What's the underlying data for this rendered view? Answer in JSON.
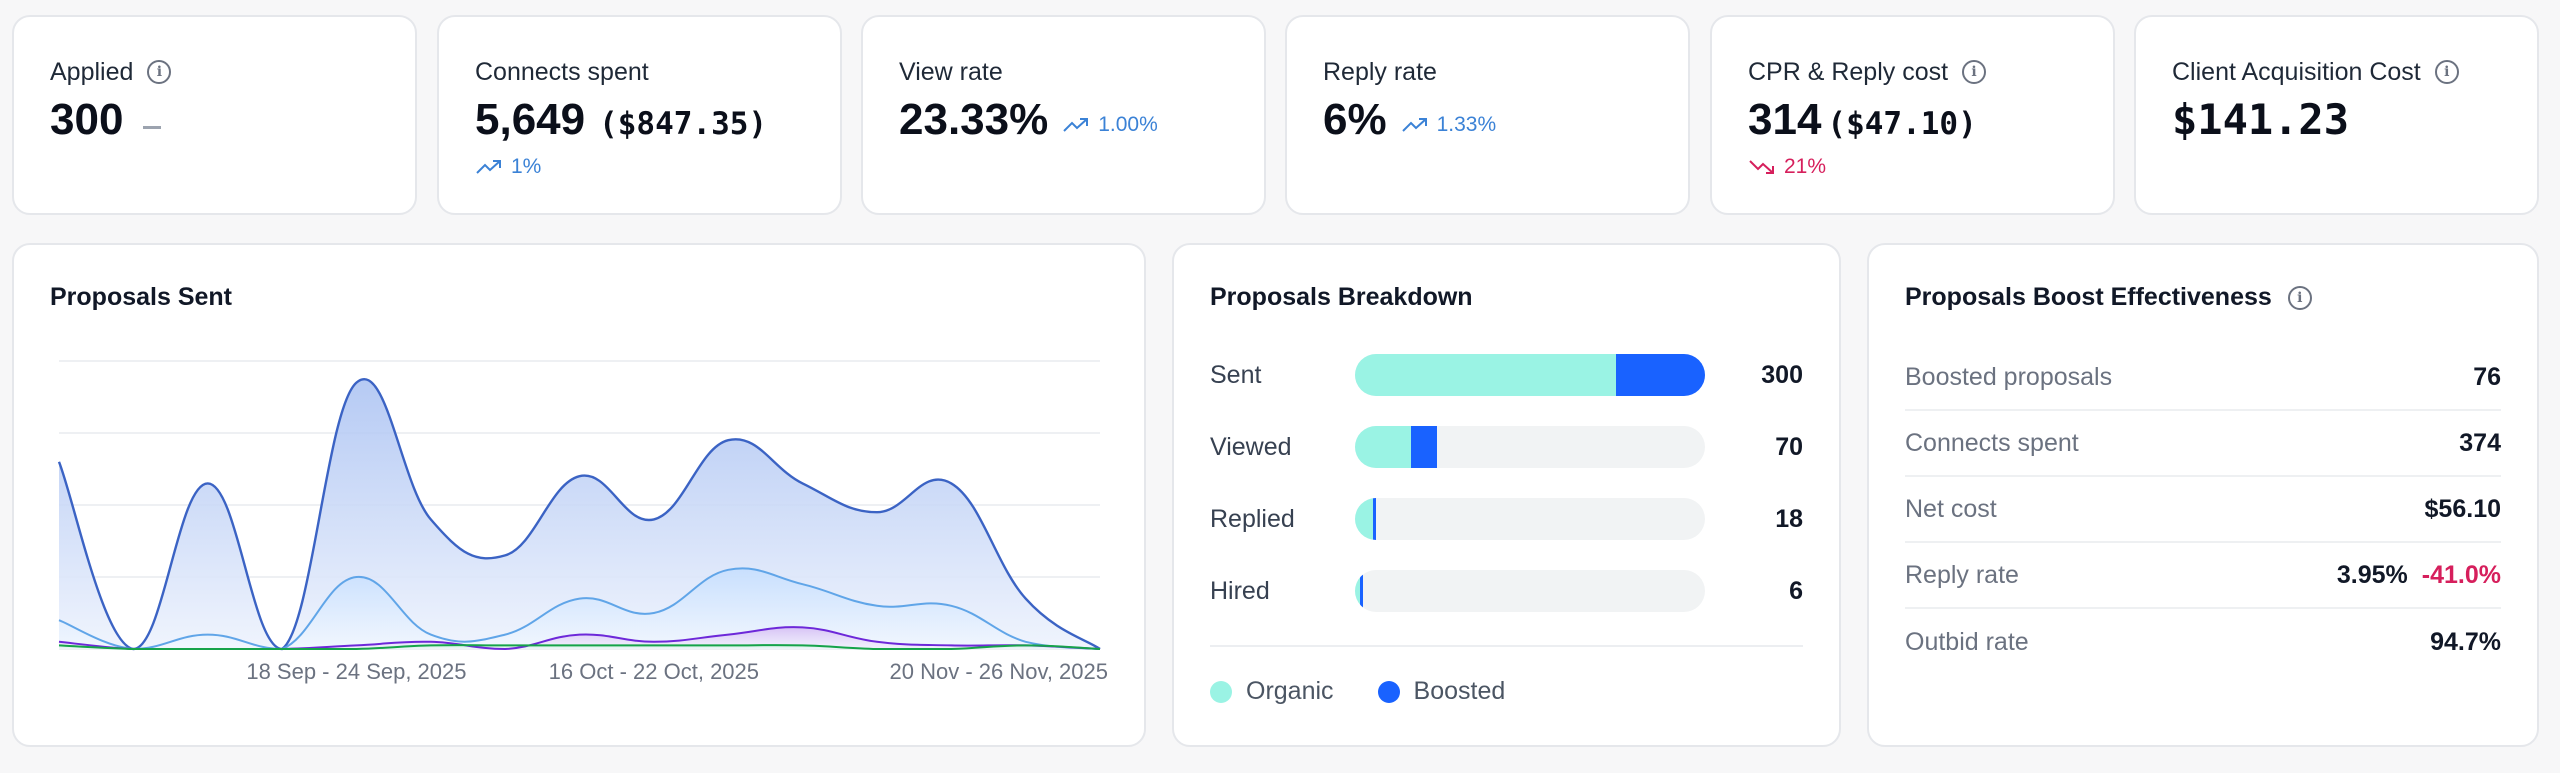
{
  "kpis": [
    {
      "label": "Applied",
      "value": "300",
      "info": true,
      "trend": null,
      "placeholder": "—"
    },
    {
      "label": "Connects spent",
      "value": "5,649",
      "sub": "($847.35)",
      "trend": {
        "dir": "up",
        "text": "1%"
      }
    },
    {
      "label": "View rate",
      "value": "23.33%",
      "trend": {
        "dir": "up",
        "text": "1.00%"
      }
    },
    {
      "label": "Reply rate",
      "value": "6%",
      "trend": {
        "dir": "up",
        "text": "1.33%"
      }
    },
    {
      "label": "CPR & Reply cost",
      "value": "314",
      "sub": "($47.10)",
      "info": true,
      "trend": {
        "dir": "down",
        "text": "21%"
      }
    },
    {
      "label": "Client Acquisition Cost",
      "value": "$141.23",
      "info": true,
      "trend": null
    }
  ],
  "proposals_sent": {
    "title": "Proposals Sent"
  },
  "chart_data": {
    "type": "area",
    "title": "Proposals Sent",
    "x_tick_labels": [
      "18 Sep - 24 Sep, 2025",
      "16 Oct - 22 Oct, 2025",
      "20 Nov - 26 Nov, 2025"
    ],
    "x_tick_indices": [
      4,
      8,
      12
    ],
    "ylim": [
      0,
      40
    ],
    "grid": true,
    "series": [
      {
        "name": "Sent",
        "color": "#3b63c4",
        "values": [
          26,
          0,
          23,
          0,
          37,
          18,
          13,
          24,
          18,
          29,
          23,
          19,
          23,
          7,
          0
        ]
      },
      {
        "name": "Viewed",
        "color": "#60a5e8",
        "values": [
          4,
          0,
          2,
          0,
          10,
          2,
          2,
          7,
          5,
          11,
          9,
          6,
          6,
          1,
          0
        ]
      },
      {
        "name": "Replied",
        "color": "#6d28d9",
        "values": [
          1,
          0,
          0,
          0,
          0.5,
          1,
          0,
          2,
          1,
          2,
          3,
          1,
          0.5,
          0.5,
          0
        ]
      },
      {
        "name": "Hired",
        "color": "#16a34a",
        "values": [
          0.5,
          0,
          0,
          0,
          0,
          0.5,
          0.5,
          0.5,
          0.5,
          0.5,
          0.5,
          0,
          0,
          0.5,
          0
        ]
      }
    ]
  },
  "breakdown": {
    "title": "Proposals Breakdown",
    "max": 300,
    "rows": [
      {
        "label": "Sent",
        "total": "300",
        "organic": 224,
        "boosted": 76
      },
      {
        "label": "Viewed",
        "total": "70",
        "organic": 48,
        "boosted": 22
      },
      {
        "label": "Replied",
        "total": "18",
        "organic": 15,
        "boosted": 3
      },
      {
        "label": "Hired",
        "total": "6",
        "organic": 4,
        "boosted": 2
      }
    ],
    "legend": [
      {
        "label": "Organic",
        "color": "#9af3e4"
      },
      {
        "label": "Boosted",
        "color": "#1962ff"
      }
    ]
  },
  "effectiveness": {
    "title": "Proposals Boost Effectiveness",
    "rows": [
      {
        "label": "Boosted proposals",
        "value": "76"
      },
      {
        "label": "Connects spent",
        "value": "374"
      },
      {
        "label": "Net cost",
        "value": "$56.10"
      },
      {
        "label": "Reply rate",
        "value": "3.95%",
        "delta": "-41.0%"
      },
      {
        "label": "Outbid rate",
        "value": "94.7%"
      }
    ]
  },
  "icons": {
    "info": "info-circle-icon",
    "trend_up": "trending-up-icon",
    "trend_down": "trending-down-icon"
  },
  "colors": {
    "trend_up": "#3b82d6",
    "trend_down": "#d61f5c",
    "organic": "#9af3e4",
    "boosted": "#1962ff"
  }
}
